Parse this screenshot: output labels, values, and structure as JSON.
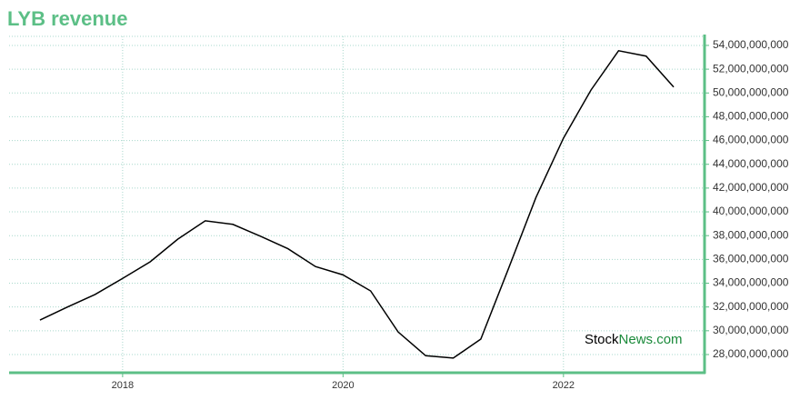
{
  "chart_data": {
    "type": "line",
    "title": "LYB revenue",
    "x": [
      2017.25,
      2017.5,
      2017.75,
      2018,
      2018.25,
      2018.5,
      2018.75,
      2019,
      2019.25,
      2019.5,
      2019.75,
      2020,
      2020.25,
      2020.5,
      2020.75,
      2021,
      2021.25,
      2021.5,
      2021.75,
      2022,
      2022.25,
      2022.5,
      2022.75,
      2023
    ],
    "series": [
      {
        "name": "revenue",
        "color": "#000000",
        "values": [
          30900000000,
          32000000000,
          33050000000,
          34400000000,
          35800000000,
          37700000000,
          39250000000,
          38950000000,
          37950000000,
          36900000000,
          35400000000,
          34700000000,
          33350000000,
          29900000000,
          27900000000,
          27700000000,
          29300000000,
          35200000000,
          41200000000,
          46200000000,
          50250000000,
          53550000000,
          53100000000,
          50500000000
        ]
      }
    ],
    "xlim": [
      2016.97,
      2023.28
    ],
    "xticks": [
      2018,
      2020,
      2022
    ],
    "ylim": [
      26470000000,
      54760000000
    ],
    "yticks": [
      {
        "value": 28000000000,
        "label": "28,000,000,000"
      },
      {
        "value": 30000000000,
        "label": "30,000,000,000"
      },
      {
        "value": 32000000000,
        "label": "32,000,000,000"
      },
      {
        "value": 34000000000,
        "label": "34,000,000,000"
      },
      {
        "value": 36000000000,
        "label": "36,000,000,000"
      },
      {
        "value": 38000000000,
        "label": "38,000,000,000"
      },
      {
        "value": 40000000000,
        "label": "40,000,000,000"
      },
      {
        "value": 42000000000,
        "label": "42,000,000,000"
      },
      {
        "value": 44000000000,
        "label": "44,000,000,000"
      },
      {
        "value": 46000000000,
        "label": "46,000,000,000"
      },
      {
        "value": 48000000000,
        "label": "48,000,000,000"
      },
      {
        "value": 50000000000,
        "label": "50,000,000,000"
      },
      {
        "value": 52000000000,
        "label": "52,000,000,000"
      },
      {
        "value": 54000000000,
        "label": "54,000,000,000"
      }
    ],
    "grid": true,
    "axis_color": "#5cbf86",
    "watermark": {
      "left": "Stock",
      "right": "News.com"
    }
  }
}
